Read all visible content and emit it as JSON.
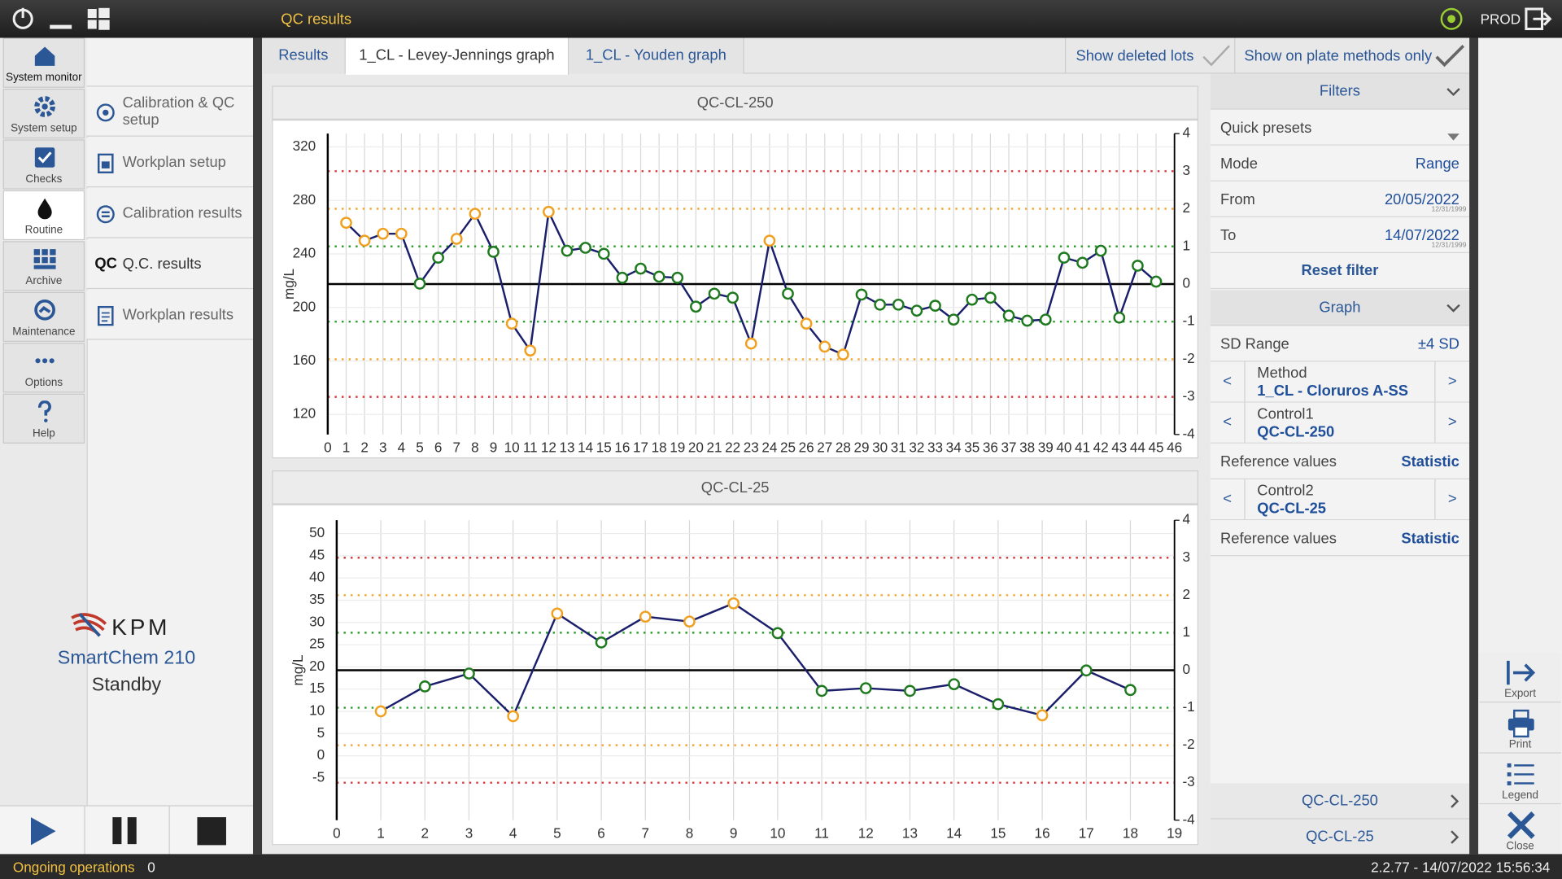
{
  "title_bar": {
    "title": "QC results",
    "env": "PROD"
  },
  "nav": [
    "System monitor",
    "System setup",
    "Checks",
    "Routine",
    "Archive",
    "Maintenance",
    "Options",
    "Help"
  ],
  "submenu": [
    "Calibration & QC setup",
    "Workplan setup",
    "Calibration results",
    "Q.C. results",
    "Workplan results"
  ],
  "qc_icon": "QC",
  "brand": {
    "logo": "KPM",
    "product": "SmartChem 210",
    "status": "Standby"
  },
  "status_bar": {
    "label": "Ongoing operations",
    "count": 0,
    "version": "2.2.77 - 14/07/2022 15:56:34"
  },
  "tabs": [
    "Results",
    "1_CL - Levey-Jennings graph",
    "1_CL - Youden graph"
  ],
  "toggles": [
    "Show deleted lots",
    "Show on plate methods only"
  ],
  "filters": {
    "header": "Filters",
    "quick_presets": "Quick presets",
    "mode": {
      "label": "Mode",
      "value": "Range"
    },
    "from": {
      "label": "From",
      "value": "20/05/2022",
      "hint": "12/31/1999"
    },
    "to": {
      "label": "To",
      "value": "14/07/2022",
      "hint": "12/31/1999"
    },
    "reset": "Reset filter"
  },
  "graph": {
    "header": "Graph",
    "sd_range": {
      "label": "SD Range",
      "value": "±4 SD"
    },
    "method": {
      "label": "Method",
      "value": "1_CL - Cloruros A-SS"
    },
    "control1": {
      "label": "Control1",
      "value": "QC-CL-250"
    },
    "ref1": {
      "label": "Reference values",
      "value": "Statistic"
    },
    "control2": {
      "label": "Control2",
      "value": "QC-CL-25"
    },
    "ref2": {
      "label": "Reference values",
      "value": "Statistic"
    },
    "prev": "<",
    "next": ">"
  },
  "footer_links": [
    "QC-CL-250",
    "QC-CL-25"
  ],
  "actions": [
    "Export",
    "Print",
    "Legend",
    "Close"
  ],
  "chart_data": [
    {
      "type": "line",
      "title": "QC-CL-250",
      "y_label": "mg/L",
      "x": [
        1,
        2,
        3,
        4,
        5,
        6,
        7,
        8,
        9,
        10,
        11,
        12,
        13,
        14,
        15,
        16,
        17,
        18,
        19,
        20,
        21,
        22,
        23,
        24,
        25,
        26,
        27,
        28,
        29,
        30,
        31,
        32,
        33,
        34,
        35,
        36,
        37,
        38,
        39,
        40,
        41,
        42,
        43,
        44,
        45
      ],
      "values": [
        263.3,
        249.9,
        255.1,
        255.1,
        217.8,
        237.2,
        251.3,
        270,
        241.6,
        187.9,
        167.8,
        271.5,
        242.4,
        244.6,
        240.1,
        222.2,
        229,
        223,
        222.2,
        200.6,
        210.3,
        207.3,
        173,
        249.9,
        210.3,
        187.9,
        170.7,
        164.8,
        209.6,
        202.1,
        202.1,
        197.6,
        201.3,
        190.9,
        205.8,
        207.3,
        193.9,
        190.1,
        190.9,
        237.2,
        233.4,
        242.4,
        192.4,
        231.2,
        219.3
      ],
      "line_color": "#1b1f6b",
      "marker_colors": {
        "within": "#1f7a1f",
        "outside": "#f0a020"
      },
      "sd_line_colors": [
        "#000000",
        "#2e9e2e",
        "#f0a830",
        "#d83a3a"
      ],
      "xlim": [
        0,
        46
      ],
      "xticks": [
        0,
        1,
        2,
        3,
        4,
        5,
        6,
        7,
        8,
        9,
        10,
        11,
        12,
        13,
        14,
        15,
        16,
        17,
        18,
        19,
        20,
        21,
        22,
        23,
        24,
        25,
        26,
        27,
        28,
        29,
        30,
        31,
        32,
        33,
        34,
        35,
        36,
        37,
        38,
        39,
        40,
        41,
        42,
        43,
        44,
        45,
        46
      ],
      "ylim": [
        105,
        330
      ],
      "yticks": [
        120,
        160,
        200,
        240,
        280,
        320
      ],
      "y2lim": [
        -4,
        4
      ],
      "y2ticks": [
        -4,
        -3,
        -2,
        -1,
        0,
        1,
        2,
        3,
        4
      ],
      "grid": true
    },
    {
      "type": "line",
      "title": "QC-CL-25",
      "y_label": "mg/L",
      "x": [
        1,
        2,
        3,
        4,
        5,
        6,
        7,
        8,
        9,
        10,
        11,
        12,
        13,
        14,
        15,
        16,
        17,
        18
      ],
      "values": [
        10.0,
        15.6,
        18.5,
        8.9,
        32.0,
        25.5,
        31.3,
        30.2,
        34.3,
        27.6,
        14.6,
        15.2,
        14.6,
        16.1,
        11.6,
        9.1,
        19.2,
        14.8
      ],
      "line_color": "#1b1f6b",
      "marker_colors": {
        "within": "#1f7a1f",
        "outside": "#f0a020"
      },
      "sd_line_colors": [
        "#000000",
        "#2e9e2e",
        "#f0a830",
        "#d83a3a"
      ],
      "xlim": [
        0,
        19
      ],
      "xticks": [
        0,
        1,
        2,
        3,
        4,
        5,
        6,
        7,
        8,
        9,
        10,
        11,
        12,
        13,
        14,
        15,
        16,
        17,
        18,
        19
      ],
      "ylim": [
        -14.5,
        53
      ],
      "yticks": [
        -5,
        0,
        5,
        10,
        15,
        20,
        25,
        30,
        35,
        40,
        45,
        50
      ],
      "y2lim": [
        -4,
        4
      ],
      "y2ticks": [
        -4,
        -3,
        -2,
        -1,
        0,
        1,
        2,
        3,
        4
      ],
      "grid": true
    }
  ]
}
